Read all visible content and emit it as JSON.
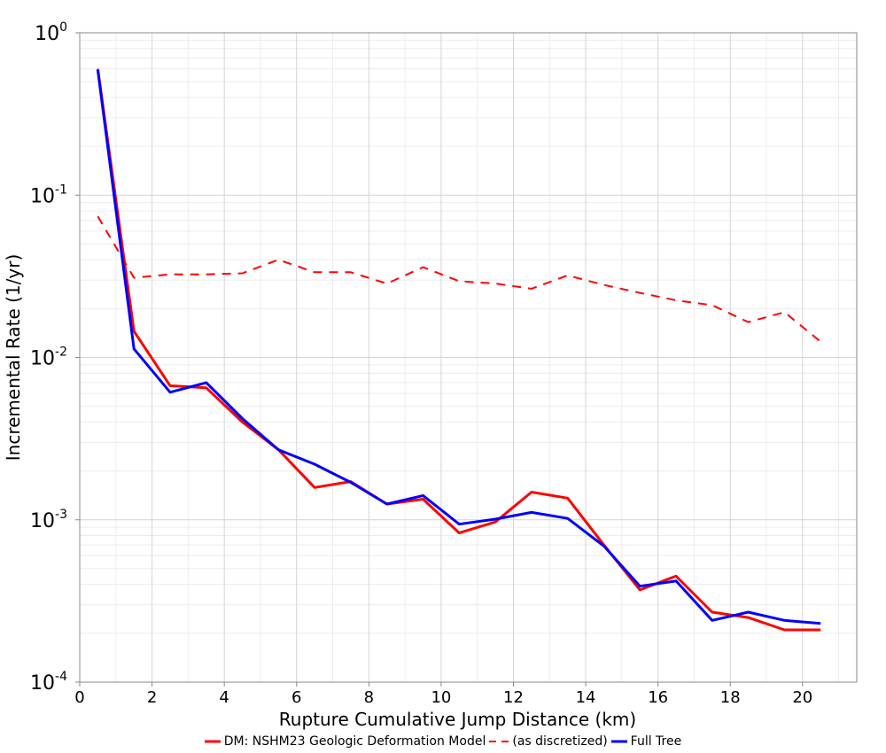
{
  "chart_data": {
    "type": "line",
    "title": "",
    "xlabel": "Rupture Cumulative Jump Distance (km)",
    "ylabel": "Incremental Rate (1/yr)",
    "x_scale": "linear",
    "y_scale": "log",
    "xlim": [
      0,
      21.5
    ],
    "ylim": [
      0.0001,
      1
    ],
    "grid": true,
    "legend_position": "bottom",
    "x_ticks": [
      0,
      2,
      4,
      6,
      8,
      10,
      12,
      14,
      16,
      18,
      20
    ],
    "x_tick_labels": [
      "0",
      "2",
      "4",
      "6",
      "8",
      "10",
      "12",
      "14",
      "16",
      "18",
      "20"
    ],
    "y_ticks": [
      {
        "value": 1,
        "base": "10",
        "exp": "0"
      },
      {
        "value": 0.1,
        "base": "10",
        "exp": "-1"
      },
      {
        "value": 0.01,
        "base": "10",
        "exp": "-2"
      },
      {
        "value": 0.001,
        "base": "10",
        "exp": "-3"
      },
      {
        "value": 0.0001,
        "base": "10",
        "exp": "-4"
      }
    ],
    "x": [
      0.5,
      1.5,
      2.5,
      3.5,
      4.5,
      5.5,
      6.5,
      7.5,
      8.5,
      9.5,
      10.5,
      11.5,
      12.5,
      13.5,
      14.5,
      15.5,
      16.5,
      17.5,
      18.5,
      19.5,
      20.5
    ],
    "series": [
      {
        "name": "DM: NSHM23 Geologic Deformation Model",
        "color": "#ff0000",
        "dash": "solid",
        "values": [
          0.6,
          0.0145,
          0.0067,
          0.0065,
          0.004,
          0.0027,
          0.00158,
          0.00172,
          0.00125,
          0.00134,
          0.00083,
          0.00097,
          0.00148,
          0.00136,
          0.0007,
          0.00037,
          0.00045,
          0.00027,
          0.00025,
          0.00021,
          0.00021
        ]
      },
      {
        "name": "(as discretized)",
        "color": "#ff0000",
        "dash": "dashed",
        "values": [
          0.074,
          0.031,
          0.0325,
          0.0325,
          0.033,
          0.04,
          0.0335,
          0.0335,
          0.0285,
          0.036,
          0.0295,
          0.0285,
          0.0265,
          0.032,
          0.028,
          0.025,
          0.0225,
          0.021,
          0.0165,
          0.019,
          0.0125
        ]
      },
      {
        "name": "Full Tree",
        "color": "#0000ff",
        "dash": "solid",
        "values": [
          0.59,
          0.0113,
          0.0061,
          0.007,
          0.0042,
          0.0027,
          0.0022,
          0.0017,
          0.00125,
          0.00141,
          0.00094,
          0.00101,
          0.00111,
          0.00102,
          0.00069,
          0.00039,
          0.00042,
          0.00024,
          0.00027,
          0.00024,
          0.00023
        ]
      }
    ]
  }
}
